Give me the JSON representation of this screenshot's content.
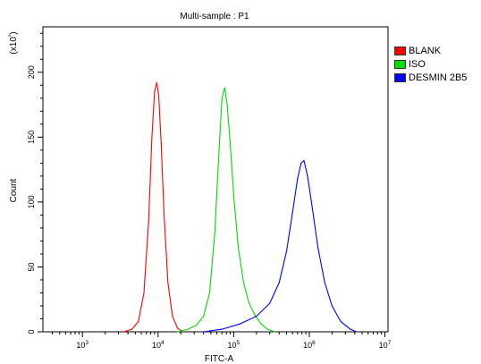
{
  "chart_data": {
    "type": "line",
    "title": "Multi-sample : P1",
    "xlabel": "FITC-A",
    "ylabel": "Count",
    "y_multiplier": "(x10¹)",
    "xscale": "log",
    "xlim": [
      300,
      11000000
    ],
    "ylim": [
      0,
      235
    ],
    "x_ticks": [
      1000,
      10000,
      100000,
      1000000,
      10000000
    ],
    "x_tick_labels": [
      {
        "base": "10",
        "exp": "3"
      },
      {
        "base": "10",
        "exp": "4"
      },
      {
        "base": "10",
        "exp": "5"
      },
      {
        "base": "10",
        "exp": "6"
      },
      {
        "base": "10",
        "exp": "7"
      }
    ],
    "y_ticks": [
      0,
      50,
      100,
      150,
      200
    ],
    "y_tick_labels": [
      "0",
      "50",
      "100",
      "150",
      "200"
    ],
    "grid": false,
    "legend_position": "right",
    "series": [
      {
        "name": "BLANK",
        "color": "#ff0000",
        "x": [
          3500,
          4500,
          5500,
          6500,
          7500,
          8300,
          9000,
          9600,
          10200,
          11000,
          12000,
          13500,
          15500,
          18000,
          21000
        ],
        "y": [
          0,
          2,
          8,
          30,
          85,
          150,
          185,
          192,
          182,
          145,
          90,
          38,
          12,
          3,
          0
        ]
      },
      {
        "name": "ISO",
        "color": "#00dd00",
        "x": [
          18000,
          25000,
          32000,
          40000,
          48000,
          56000,
          64000,
          70000,
          76000,
          82000,
          90000,
          100000,
          115000,
          135000,
          160000,
          190000,
          230000,
          280000,
          350000
        ],
        "y": [
          0,
          2,
          5,
          12,
          30,
          75,
          140,
          180,
          188,
          175,
          145,
          105,
          65,
          38,
          22,
          13,
          6,
          2,
          0
        ]
      },
      {
        "name": "DESMIN 2B5",
        "color": "#0000ff",
        "x": [
          40000,
          70000,
          120000,
          200000,
          300000,
          400000,
          500000,
          600000,
          700000,
          780000,
          850000,
          950000,
          1100000,
          1300000,
          1600000,
          2000000,
          2600000,
          3500000,
          4200000
        ],
        "y": [
          0,
          2,
          6,
          12,
          22,
          38,
          62,
          92,
          118,
          130,
          132,
          120,
          95,
          65,
          38,
          20,
          8,
          2,
          0
        ]
      }
    ]
  }
}
